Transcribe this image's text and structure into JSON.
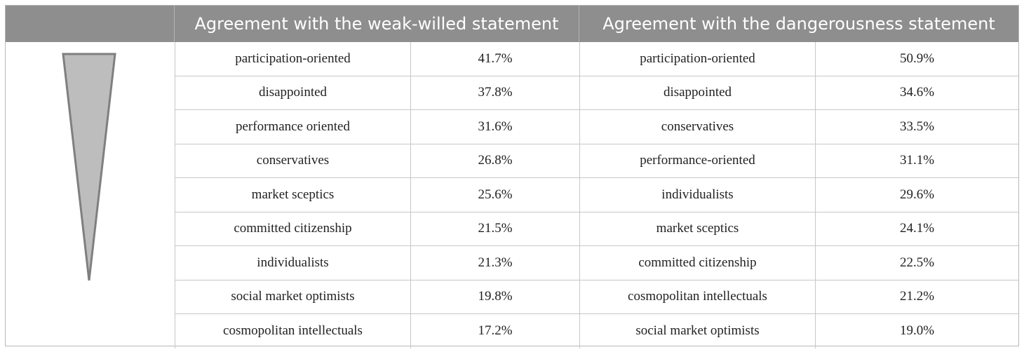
{
  "headers": {
    "weak_willed": "Agreement with the weak-willed statement",
    "dangerousness": "Agreement with the dangerousness statement"
  },
  "rows": [
    {
      "ww_group": "participation-oriented",
      "ww_value": "41.7%",
      "d_group": "participation-oriented",
      "d_value": "50.9%"
    },
    {
      "ww_group": "disappointed",
      "ww_value": "37.8%",
      "d_group": "disappointed",
      "d_value": "34.6%"
    },
    {
      "ww_group": "performance oriented",
      "ww_value": "31.6%",
      "d_group": "conservatives",
      "d_value": "33.5%"
    },
    {
      "ww_group": "conservatives",
      "ww_value": "26.8%",
      "d_group": "performance-oriented",
      "d_value": "31.1%"
    },
    {
      "ww_group": "market sceptics",
      "ww_value": "25.6%",
      "d_group": "individualists",
      "d_value": "29.6%"
    },
    {
      "ww_group": "committed citizenship",
      "ww_value": "21.5%",
      "d_group": "market sceptics",
      "d_value": "24.1%"
    },
    {
      "ww_group": "individualists",
      "ww_value": "21.3%",
      "d_group": "committed citizenship",
      "d_value": "22.5%"
    },
    {
      "ww_group": "social market optimists",
      "ww_value": "19.8%",
      "d_group": "cosmopolitan intellectuals",
      "d_value": "21.2%"
    },
    {
      "ww_group": "cosmopolitan intellectuals",
      "ww_value": "17.2%",
      "d_group": "social market optimists",
      "d_value": "19.0%"
    }
  ],
  "colors": {
    "header_bg": "#8e8e8e",
    "header_text": "#ffffff",
    "arrow_fill": "#bdbdbd",
    "arrow_stroke": "#7f7f7f"
  },
  "icons": {
    "ranking_indicator": "descending-triangle-icon"
  }
}
